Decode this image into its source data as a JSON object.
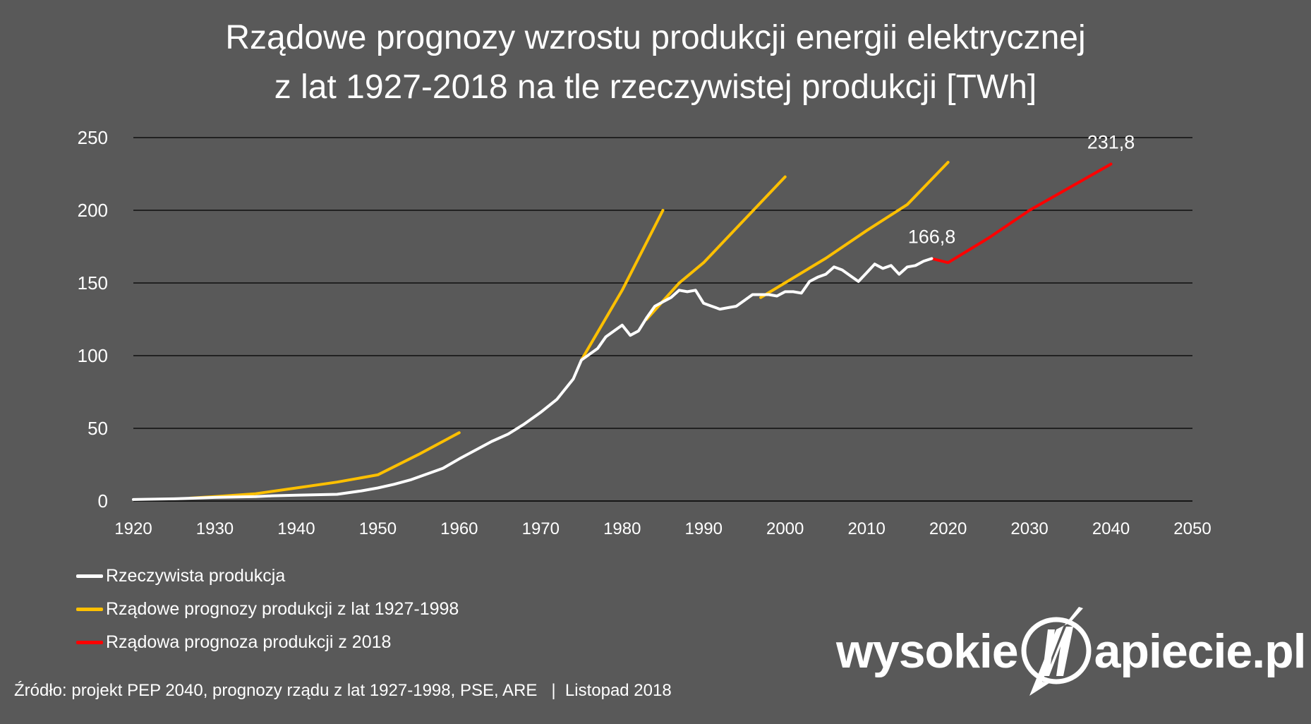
{
  "title": {
    "line1": "Rządowe prognozy wzrostu produkcji energii elektrycznej",
    "line2": "z lat 1927-2018 na tle rzeczywistej produkcji [TWh]"
  },
  "chart_data": {
    "type": "line",
    "title": "Rządowe prognozy wzrostu produkcji energii elektrycznej z lat 1927-2018 na tle rzeczywistej produkcji [TWh]",
    "xlabel": "",
    "ylabel": "",
    "xlim": [
      1920,
      2050
    ],
    "ylim": [
      0,
      250
    ],
    "x_ticks": [
      "1920",
      "1930",
      "1940",
      "1950",
      "1960",
      "1970",
      "1980",
      "1990",
      "2000",
      "2010",
      "2020",
      "2030",
      "2040",
      "2050"
    ],
    "y_ticks": [
      "0",
      "50",
      "100",
      "150",
      "200",
      "250"
    ],
    "grid": "horizontal",
    "legend_position": "bottom-left",
    "series": [
      {
        "name": "Rzeczywista produkcja",
        "color": "#ffffff",
        "points": [
          [
            1920,
            1
          ],
          [
            1925,
            1.5
          ],
          [
            1930,
            2.5
          ],
          [
            1935,
            3
          ],
          [
            1937,
            3.6
          ],
          [
            1940,
            4
          ],
          [
            1945,
            4.6
          ],
          [
            1948,
            7
          ],
          [
            1950,
            9
          ],
          [
            1952,
            11.5
          ],
          [
            1954,
            14.5
          ],
          [
            1956,
            18.5
          ],
          [
            1958,
            22.5
          ],
          [
            1960,
            29
          ],
          [
            1962,
            35
          ],
          [
            1964,
            41
          ],
          [
            1966,
            46
          ],
          [
            1968,
            53
          ],
          [
            1970,
            61
          ],
          [
            1972,
            70
          ],
          [
            1974,
            84
          ],
          [
            1975,
            97
          ],
          [
            1977,
            105
          ],
          [
            1978,
            113
          ],
          [
            1979,
            117
          ],
          [
            1980,
            121
          ],
          [
            1981,
            114
          ],
          [
            1982,
            117
          ],
          [
            1983,
            126
          ],
          [
            1984,
            134
          ],
          [
            1985,
            137
          ],
          [
            1986,
            140
          ],
          [
            1987,
            145
          ],
          [
            1988,
            144
          ],
          [
            1989,
            145
          ],
          [
            1990,
            136
          ],
          [
            1991,
            134
          ],
          [
            1992,
            132
          ],
          [
            1993,
            133
          ],
          [
            1994,
            134
          ],
          [
            1995,
            138
          ],
          [
            1996,
            142
          ],
          [
            1997,
            142
          ],
          [
            1998,
            142
          ],
          [
            1999,
            141
          ],
          [
            2000,
            144
          ],
          [
            2001,
            144
          ],
          [
            2002,
            143
          ],
          [
            2003,
            151
          ],
          [
            2004,
            154
          ],
          [
            2005,
            156
          ],
          [
            2006,
            161
          ],
          [
            2007,
            159
          ],
          [
            2008,
            155
          ],
          [
            2009,
            151
          ],
          [
            2010,
            157
          ],
          [
            2011,
            163
          ],
          [
            2012,
            160
          ],
          [
            2013,
            162
          ],
          [
            2014,
            156
          ],
          [
            2015,
            161
          ],
          [
            2016,
            162
          ],
          [
            2017,
            165
          ],
          [
            2018,
            166.8
          ]
        ]
      },
      {
        "name": "Rządowe prognozy produkcji z lat 1927-1998",
        "color": "#ffc000",
        "segments": [
          [
            [
              1927,
              2
            ],
            [
              1930,
              3
            ],
            [
              1935,
              5
            ],
            [
              1940,
              9
            ],
            [
              1945,
              13
            ],
            [
              1950,
              18
            ],
            [
              1955,
              32
            ],
            [
              1960,
              47
            ]
          ],
          [
            [
              1975,
              97
            ],
            [
              1980,
              145
            ],
            [
              1985,
              200
            ]
          ],
          [
            [
              1983,
              125
            ],
            [
              1987,
              150
            ],
            [
              1990,
              164
            ],
            [
              2000,
              223
            ]
          ],
          [
            [
              1997,
              140
            ],
            [
              2005,
              167
            ],
            [
              2010,
              186
            ],
            [
              2015,
              204
            ],
            [
              2020,
              233
            ]
          ]
        ]
      },
      {
        "name": "Rządowa prognoza produkcji z 2018",
        "color": "#ff0000",
        "points": [
          [
            2018,
            166.8
          ],
          [
            2020,
            164
          ],
          [
            2025,
            181
          ],
          [
            2030,
            200
          ],
          [
            2040,
            231.8
          ]
        ]
      }
    ],
    "annotations": [
      {
        "text": "166,8",
        "x": 2018,
        "y": 166.8
      },
      {
        "text": "231,8",
        "x": 2040,
        "y": 231.8
      }
    ]
  },
  "source": "Źródło: projekt PEP 2040, prognozy rządu z lat 1927-1998, PSE, ARE   |  Listopad 2018",
  "logo": {
    "left": "wysokie",
    "right": "apiecie.pl"
  }
}
